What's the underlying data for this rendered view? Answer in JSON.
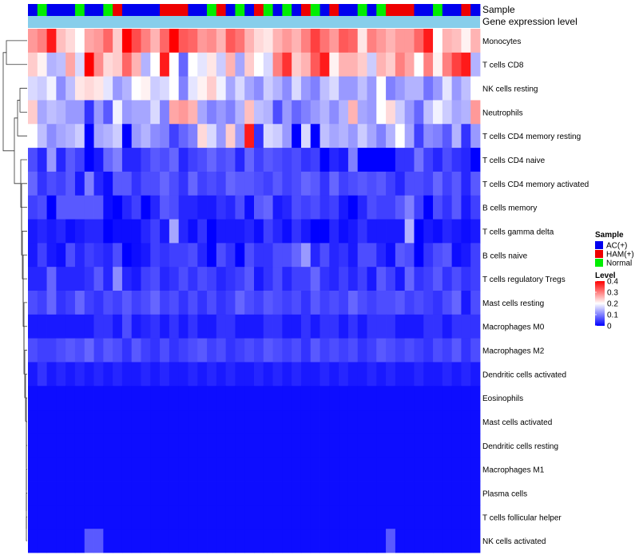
{
  "chart_data": {
    "type": "heatmap",
    "annotation_rows": [
      "Sample",
      "Gene expression level"
    ],
    "sample_groups": [
      "H",
      "N",
      "H",
      "H",
      "H",
      "N",
      "H",
      "H",
      "N",
      "R",
      "H",
      "H",
      "H",
      "H",
      "R",
      "R",
      "R",
      "H",
      "H",
      "N",
      "R",
      "H",
      "N",
      "H",
      "R",
      "N",
      "H",
      "N",
      "H",
      "R",
      "N",
      "H",
      "R",
      "H",
      "H",
      "N",
      "H",
      "N",
      "R",
      "R",
      "R",
      "H",
      "H",
      "N",
      "H",
      "H",
      "R",
      "H"
    ],
    "rows": [
      "Monocytes",
      "T cells CD8",
      "NK cells resting",
      "Neutrophils",
      "T cells CD4 memory resting",
      "T cells CD4 naive",
      "T cells CD4 memory activated",
      "B cells memory",
      "T cells gamma delta",
      "B cells naive",
      "T cells regulatory  Tregs",
      "Mast cells resting",
      "Macrophages M0",
      "Macrophages M2",
      "Dendritic cells activated",
      "Eosinophils",
      "Mast cells activated",
      "Dendritic cells resting",
      "Macrophages M1",
      "Plasma cells",
      "T cells follicular helper",
      "NK cells activated"
    ],
    "values": [
      [
        0.28,
        0.3,
        0.38,
        0.25,
        0.23,
        0.2,
        0.27,
        0.28,
        0.32,
        0.24,
        0.4,
        0.34,
        0.3,
        0.26,
        0.32,
        0.4,
        0.33,
        0.32,
        0.28,
        0.29,
        0.26,
        0.33,
        0.31,
        0.26,
        0.23,
        0.22,
        0.26,
        0.28,
        0.26,
        0.3,
        0.35,
        0.31,
        0.28,
        0.33,
        0.32,
        0.22,
        0.3,
        0.28,
        0.26,
        0.28,
        0.28,
        0.32,
        0.38,
        0.2,
        0.26,
        0.25,
        0.21,
        0.26
      ],
      [
        0.24,
        0.21,
        0.14,
        0.15,
        0.27,
        0.17,
        0.42,
        0.29,
        0.23,
        0.24,
        0.32,
        0.26,
        0.14,
        0.2,
        0.38,
        0.2,
        0.08,
        0.2,
        0.18,
        0.22,
        0.16,
        0.26,
        0.13,
        0.24,
        0.2,
        0.17,
        0.3,
        0.36,
        0.24,
        0.26,
        0.33,
        0.38,
        0.21,
        0.26,
        0.26,
        0.24,
        0.16,
        0.26,
        0.24,
        0.3,
        0.27,
        0.2,
        0.3,
        0.21,
        0.3,
        0.35,
        0.38,
        0.14
      ],
      [
        0.17,
        0.16,
        0.19,
        0.11,
        0.15,
        0.22,
        0.23,
        0.22,
        0.18,
        0.12,
        0.14,
        0.2,
        0.21,
        0.16,
        0.17,
        0.2,
        0.1,
        0.18,
        0.21,
        0.24,
        0.19,
        0.13,
        0.17,
        0.13,
        0.11,
        0.16,
        0.14,
        0.11,
        0.17,
        0.12,
        0.1,
        0.15,
        0.17,
        0.12,
        0.12,
        0.15,
        0.12,
        0.2,
        0.1,
        0.12,
        0.14,
        0.14,
        0.09,
        0.12,
        0.18,
        0.12,
        0.15,
        0.2
      ],
      [
        0.24,
        0.13,
        0.15,
        0.14,
        0.12,
        0.12,
        0.04,
        0.12,
        0.07,
        0.19,
        0.12,
        0.13,
        0.13,
        0.17,
        0.1,
        0.27,
        0.28,
        0.26,
        0.13,
        0.1,
        0.12,
        0.1,
        0.14,
        0.25,
        0.15,
        0.14,
        0.06,
        0.12,
        0.08,
        0.1,
        0.12,
        0.14,
        0.11,
        0.14,
        0.26,
        0.13,
        0.12,
        0.2,
        0.23,
        0.16,
        0.12,
        0.08,
        0.15,
        0.19,
        0.16,
        0.13,
        0.14,
        0.28
      ],
      [
        0.2,
        0.15,
        0.11,
        0.13,
        0.14,
        0.16,
        0.0,
        0.13,
        0.14,
        0.16,
        0.0,
        0.12,
        0.14,
        0.11,
        0.1,
        0.05,
        0.08,
        0.1,
        0.23,
        0.17,
        0.12,
        0.24,
        0.12,
        0.38,
        0.04,
        0.17,
        0.16,
        0.12,
        0.0,
        0.17,
        0.0,
        0.15,
        0.13,
        0.14,
        0.12,
        0.16,
        0.13,
        0.1,
        0.14,
        0.2,
        0.13,
        0.05,
        0.11,
        0.1,
        0.07,
        0.14,
        0.04,
        0.12
      ],
      [
        0.06,
        0.03,
        0.12,
        0.03,
        0.07,
        0.05,
        0.0,
        0.02,
        0.08,
        0.1,
        0.03,
        0.03,
        0.05,
        0.07,
        0.06,
        0.08,
        0.03,
        0.05,
        0.06,
        0.08,
        0.06,
        0.07,
        0.03,
        0.08,
        0.05,
        0.07,
        0.06,
        0.05,
        0.06,
        0.04,
        0.05,
        0.0,
        0.03,
        0.02,
        0.1,
        0.0,
        0.0,
        0.0,
        0.0,
        0.04,
        0.04,
        0.09,
        0.05,
        0.03,
        0.06,
        0.04,
        0.03,
        0.0
      ],
      [
        0.08,
        0.04,
        0.06,
        0.05,
        0.07,
        0.02,
        0.1,
        0.03,
        0.01,
        0.07,
        0.07,
        0.04,
        0.06,
        0.06,
        0.08,
        0.06,
        0.04,
        0.08,
        0.05,
        0.06,
        0.05,
        0.08,
        0.07,
        0.07,
        0.06,
        0.05,
        0.07,
        0.05,
        0.06,
        0.08,
        0.07,
        0.04,
        0.08,
        0.05,
        0.06,
        0.07,
        0.06,
        0.07,
        0.05,
        0.03,
        0.06,
        0.06,
        0.05,
        0.08,
        0.05,
        0.07,
        0.03,
        0.07
      ],
      [
        0.05,
        0.06,
        0.0,
        0.07,
        0.07,
        0.07,
        0.07,
        0.07,
        0.01,
        0.0,
        0.03,
        0.05,
        0.0,
        0.03,
        0.07,
        0.06,
        0.03,
        0.03,
        0.02,
        0.02,
        0.04,
        0.03,
        0.06,
        0.01,
        0.07,
        0.08,
        0.02,
        0.03,
        0.06,
        0.05,
        0.06,
        0.04,
        0.05,
        0.02,
        0.0,
        0.03,
        0.06,
        0.05,
        0.05,
        0.07,
        0.1,
        0.05,
        0.0,
        0.06,
        0.04,
        0.07,
        0.02,
        0.05
      ],
      [
        0.02,
        0.03,
        0.02,
        0.03,
        0.01,
        0.02,
        0.03,
        0.03,
        0.0,
        0.01,
        0.01,
        0.01,
        0.03,
        0.05,
        0.02,
        0.13,
        0.03,
        0.01,
        0.04,
        0.0,
        0.02,
        0.02,
        0.02,
        0.03,
        0.01,
        0.05,
        0.03,
        0.01,
        0.04,
        0.02,
        0.0,
        0.0,
        0.03,
        0.01,
        0.02,
        0.04,
        0.02,
        0.02,
        0.02,
        0.02,
        0.14,
        0.0,
        0.02,
        0.01,
        0.03,
        0.02,
        0.01,
        0.02
      ],
      [
        0.02,
        0.05,
        0.02,
        0.01,
        0.06,
        0.03,
        0.05,
        0.04,
        0.03,
        0.06,
        0.0,
        0.01,
        0.02,
        0.05,
        0.04,
        0.05,
        0.05,
        0.06,
        0.03,
        0.0,
        0.06,
        0.04,
        0.0,
        0.06,
        0.04,
        0.04,
        0.06,
        0.06,
        0.08,
        0.12,
        0.03,
        0.06,
        0.03,
        0.04,
        0.02,
        0.06,
        0.06,
        0.03,
        0.01,
        0.07,
        0.06,
        0.0,
        0.04,
        0.06,
        0.07,
        0.01,
        0.02,
        0.05
      ],
      [
        0.03,
        0.03,
        0.08,
        0.03,
        0.03,
        0.03,
        0.04,
        0.07,
        0.03,
        0.11,
        0.03,
        0.02,
        0.05,
        0.06,
        0.03,
        0.04,
        0.06,
        0.04,
        0.06,
        0.05,
        0.03,
        0.04,
        0.05,
        0.07,
        0.02,
        0.04,
        0.06,
        0.03,
        0.05,
        0.05,
        0.08,
        0.04,
        0.03,
        0.05,
        0.03,
        0.05,
        0.02,
        0.07,
        0.05,
        0.02,
        0.08,
        0.04,
        0.05,
        0.07,
        0.04,
        0.06,
        0.04,
        0.05
      ],
      [
        0.06,
        0.05,
        0.08,
        0.04,
        0.05,
        0.08,
        0.05,
        0.04,
        0.06,
        0.05,
        0.07,
        0.05,
        0.06,
        0.08,
        0.05,
        0.06,
        0.04,
        0.06,
        0.04,
        0.06,
        0.04,
        0.05,
        0.08,
        0.06,
        0.05,
        0.07,
        0.06,
        0.05,
        0.06,
        0.04,
        0.07,
        0.05,
        0.06,
        0.05,
        0.08,
        0.06,
        0.05,
        0.06,
        0.06,
        0.07,
        0.05,
        0.06,
        0.05,
        0.04,
        0.06,
        0.08,
        0.02,
        0.06
      ],
      [
        0.02,
        0.02,
        0.02,
        0.02,
        0.02,
        0.02,
        0.02,
        0.04,
        0.04,
        0.02,
        0.06,
        0.02,
        0.03,
        0.04,
        0.02,
        0.04,
        0.02,
        0.04,
        0.02,
        0.02,
        0.04,
        0.04,
        0.02,
        0.02,
        0.02,
        0.04,
        0.04,
        0.02,
        0.02,
        0.04,
        0.02,
        0.04,
        0.04,
        0.02,
        0.04,
        0.02,
        0.04,
        0.04,
        0.04,
        0.02,
        0.02,
        0.02,
        0.04,
        0.04,
        0.02,
        0.04,
        0.04,
        0.04
      ],
      [
        0.06,
        0.05,
        0.05,
        0.06,
        0.07,
        0.06,
        0.08,
        0.05,
        0.07,
        0.06,
        0.04,
        0.07,
        0.05,
        0.04,
        0.06,
        0.04,
        0.05,
        0.06,
        0.07,
        0.05,
        0.06,
        0.04,
        0.05,
        0.06,
        0.05,
        0.07,
        0.06,
        0.05,
        0.06,
        0.04,
        0.07,
        0.05,
        0.06,
        0.05,
        0.06,
        0.04,
        0.05,
        0.07,
        0.06,
        0.05,
        0.06,
        0.05,
        0.04,
        0.06,
        0.05,
        0.07,
        0.04,
        0.06
      ],
      [
        0.02,
        0.04,
        0.02,
        0.03,
        0.02,
        0.03,
        0.02,
        0.03,
        0.02,
        0.03,
        0.02,
        0.02,
        0.03,
        0.02,
        0.03,
        0.02,
        0.02,
        0.03,
        0.02,
        0.03,
        0.02,
        0.03,
        0.02,
        0.02,
        0.03,
        0.02,
        0.03,
        0.02,
        0.03,
        0.02,
        0.02,
        0.03,
        0.02,
        0.03,
        0.02,
        0.02,
        0.03,
        0.02,
        0.03,
        0.02,
        0.02,
        0.03,
        0.02,
        0.02,
        0.03,
        0.02,
        0.03,
        0.02
      ],
      [
        0.01,
        0.01,
        0.01,
        0.01,
        0.01,
        0.01,
        0.01,
        0.01,
        0.01,
        0.01,
        0.01,
        0.01,
        0.01,
        0.01,
        0.01,
        0.01,
        0.01,
        0.01,
        0.01,
        0.01,
        0.01,
        0.01,
        0.01,
        0.01,
        0.01,
        0.01,
        0.01,
        0.01,
        0.01,
        0.01,
        0.01,
        0.01,
        0.01,
        0.01,
        0.01,
        0.01,
        0.01,
        0.01,
        0.01,
        0.01,
        0.01,
        0.01,
        0.01,
        0.01,
        0.01,
        0.01,
        0.01,
        0.01
      ],
      [
        0.01,
        0.01,
        0.01,
        0.01,
        0.01,
        0.01,
        0.01,
        0.01,
        0.01,
        0.01,
        0.01,
        0.01,
        0.01,
        0.01,
        0.01,
        0.01,
        0.01,
        0.01,
        0.01,
        0.01,
        0.01,
        0.01,
        0.01,
        0.01,
        0.01,
        0.01,
        0.01,
        0.01,
        0.01,
        0.01,
        0.01,
        0.01,
        0.01,
        0.01,
        0.01,
        0.01,
        0.01,
        0.01,
        0.01,
        0.01,
        0.01,
        0.01,
        0.01,
        0.01,
        0.01,
        0.01,
        0.01,
        0.01
      ],
      [
        0.01,
        0.01,
        0.01,
        0.01,
        0.01,
        0.01,
        0.01,
        0.01,
        0.01,
        0.01,
        0.01,
        0.01,
        0.01,
        0.01,
        0.01,
        0.01,
        0.01,
        0.01,
        0.01,
        0.01,
        0.01,
        0.01,
        0.01,
        0.01,
        0.01,
        0.01,
        0.01,
        0.01,
        0.01,
        0.01,
        0.01,
        0.01,
        0.01,
        0.01,
        0.01,
        0.01,
        0.01,
        0.01,
        0.01,
        0.01,
        0.01,
        0.01,
        0.01,
        0.01,
        0.01,
        0.01,
        0.01,
        0.01
      ],
      [
        0.01,
        0.01,
        0.01,
        0.01,
        0.01,
        0.01,
        0.01,
        0.01,
        0.01,
        0.01,
        0.01,
        0.01,
        0.01,
        0.01,
        0.01,
        0.01,
        0.01,
        0.01,
        0.01,
        0.01,
        0.01,
        0.01,
        0.01,
        0.01,
        0.01,
        0.01,
        0.01,
        0.01,
        0.01,
        0.01,
        0.01,
        0.01,
        0.01,
        0.01,
        0.01,
        0.01,
        0.01,
        0.01,
        0.01,
        0.01,
        0.01,
        0.01,
        0.01,
        0.01,
        0.01,
        0.01,
        0.01,
        0.01
      ],
      [
        0.01,
        0.01,
        0.01,
        0.01,
        0.01,
        0.01,
        0.01,
        0.01,
        0.01,
        0.01,
        0.01,
        0.01,
        0.01,
        0.01,
        0.01,
        0.01,
        0.01,
        0.01,
        0.01,
        0.01,
        0.01,
        0.01,
        0.01,
        0.01,
        0.01,
        0.01,
        0.01,
        0.01,
        0.01,
        0.01,
        0.01,
        0.01,
        0.01,
        0.01,
        0.01,
        0.01,
        0.01,
        0.01,
        0.01,
        0.01,
        0.01,
        0.01,
        0.01,
        0.01,
        0.01,
        0.01,
        0.01,
        0.01
      ],
      [
        0.01,
        0.01,
        0.01,
        0.01,
        0.01,
        0.01,
        0.01,
        0.01,
        0.01,
        0.01,
        0.01,
        0.01,
        0.01,
        0.01,
        0.01,
        0.01,
        0.01,
        0.01,
        0.01,
        0.01,
        0.01,
        0.01,
        0.01,
        0.01,
        0.01,
        0.01,
        0.01,
        0.01,
        0.01,
        0.01,
        0.01,
        0.01,
        0.01,
        0.01,
        0.01,
        0.01,
        0.01,
        0.01,
        0.01,
        0.01,
        0.01,
        0.01,
        0.01,
        0.01,
        0.01,
        0.01,
        0.01,
        0.01
      ],
      [
        0.01,
        0.01,
        0.01,
        0.01,
        0.01,
        0.01,
        0.07,
        0.07,
        0.01,
        0.01,
        0.01,
        0.01,
        0.01,
        0.01,
        0.01,
        0.01,
        0.01,
        0.01,
        0.01,
        0.01,
        0.01,
        0.01,
        0.01,
        0.01,
        0.01,
        0.01,
        0.01,
        0.01,
        0.01,
        0.01,
        0.01,
        0.01,
        0.01,
        0.01,
        0.01,
        0.01,
        0.01,
        0.01,
        0.07,
        0.01,
        0.01,
        0.01,
        0.01,
        0.01,
        0.01,
        0.01,
        0.01,
        0.01
      ]
    ],
    "legend": {
      "sample_title": "Sample",
      "sample_entries": [
        {
          "key": "H",
          "label": "AC(+)",
          "color": "#0000ee"
        },
        {
          "key": "R",
          "label": "HAM(+)",
          "color": "#ee0000"
        },
        {
          "key": "N",
          "label": "Normal",
          "color": "#00ee00"
        }
      ],
      "level_title": "Level",
      "level_ticks": [
        0,
        0.1,
        0.2,
        0.3,
        0.4
      ],
      "level_tick_labels": [
        "0",
        "0.1",
        "0.2",
        "0.3",
        "0.4"
      ],
      "placement": "right"
    },
    "color_scale": {
      "min": 0,
      "max": 0.4,
      "low": "#0000ff",
      "mid": "#ffffff",
      "high": "#ff0000",
      "midpoint": 0.2
    },
    "gene_expression_color": "#87ceeb"
  }
}
